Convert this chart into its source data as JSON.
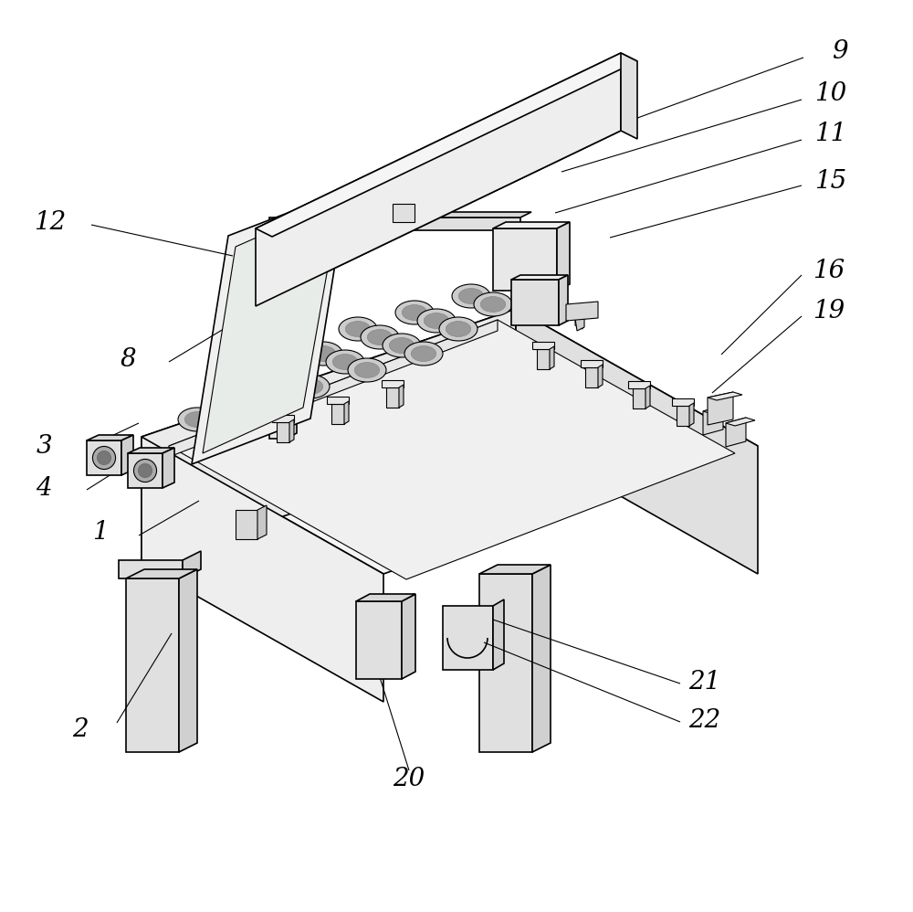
{
  "bg_color": "#ffffff",
  "line_color": "#000000",
  "lw": 1.2,
  "lw_thin": 0.8,
  "fig_width": 10.0,
  "fig_height": 9.98,
  "dpi": 100,
  "label_fontsize": 20,
  "label_color": "#000000",
  "fill_top": "#f5f5f5",
  "fill_front": "#ebebeb",
  "fill_right": "#e0e0e0",
  "fill_left": "#eeeeee",
  "fill_white": "#fafafa"
}
